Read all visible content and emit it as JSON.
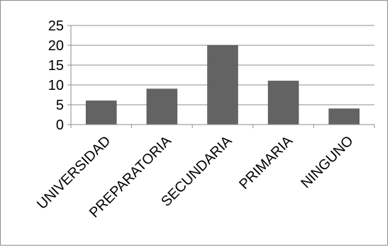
{
  "chart_data": {
    "type": "bar",
    "title": "",
    "xlabel": "",
    "ylabel": "",
    "categories": [
      "UNIVERSIDAD",
      "PREPARATORIA",
      "SECUNDARIA",
      "PRIMARIA",
      "NINGUNO"
    ],
    "values": [
      6,
      9,
      20,
      11,
      4
    ],
    "ylim": [
      0,
      25
    ],
    "yticks": [
      "0",
      "5",
      "10",
      "15",
      "20",
      "25"
    ],
    "grid": true,
    "legend": "none",
    "colors": {
      "bar": "#636363",
      "bar_stroke": "#4d4d4d",
      "grid": "#8c8c8c",
      "axis": "#8c8c8c",
      "frame": "#8c8c8c"
    }
  }
}
